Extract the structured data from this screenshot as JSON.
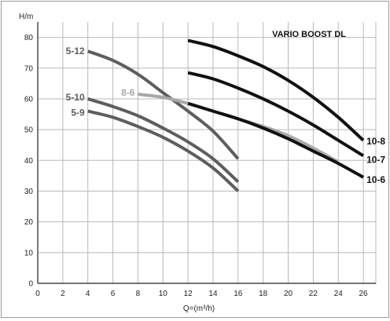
{
  "chart_data": {
    "type": "line",
    "title": "VARIO BOOST DL",
    "xlabel": "Q=(m³/h)",
    "ylabel": "H/m",
    "xlim": [
      0,
      27
    ],
    "ylim": [
      0,
      85
    ],
    "xticks": [
      "0",
      "2",
      "4",
      "6",
      "8",
      "10",
      "12",
      "14",
      "16",
      "18",
      "20",
      "22",
      "24",
      "26"
    ],
    "yticks": [
      "0",
      "10",
      "20",
      "30",
      "40",
      "50",
      "60",
      "70",
      "80"
    ],
    "grid": true,
    "series": [
      {
        "name": "5-12",
        "color": "#5e5e5e",
        "label_side": "left",
        "x": [
          4,
          6,
          8,
          10,
          12,
          14,
          16
        ],
        "y": [
          75.5,
          72.5,
          68,
          62,
          56,
          49.5,
          40.5
        ]
      },
      {
        "name": "5-10",
        "color": "#5e5e5e",
        "label_side": "left",
        "x": [
          4,
          6,
          8,
          10,
          12,
          14,
          16
        ],
        "y": [
          60,
          57.5,
          54.5,
          50.5,
          46,
          40.5,
          33
        ]
      },
      {
        "name": "5-9",
        "color": "#5e5e5e",
        "label_side": "left",
        "x": [
          4,
          6,
          8,
          10,
          12,
          14,
          16
        ],
        "y": [
          56,
          54,
          51,
          47.5,
          43,
          37.5,
          30
        ]
      },
      {
        "name": "8-6",
        "color": "#a8a8a8",
        "label_side": "left",
        "x": [
          8,
          10,
          12,
          14,
          16,
          18,
          20,
          22,
          24
        ],
        "y": [
          61.5,
          60.5,
          58.5,
          56,
          53.5,
          51,
          48,
          44,
          39.5
        ]
      },
      {
        "name": "10-8",
        "color": "#111111",
        "label_side": "right",
        "x": [
          12,
          14,
          16,
          18,
          20,
          22,
          24,
          26
        ],
        "y": [
          79,
          77,
          74,
          70.5,
          66,
          60.5,
          54,
          46.5
        ]
      },
      {
        "name": "10-7",
        "color": "#111111",
        "label_side": "right",
        "x": [
          12,
          14,
          16,
          18,
          20,
          22,
          24,
          26
        ],
        "y": [
          68.5,
          66.5,
          63.5,
          60,
          56,
          51.5,
          46.5,
          41.5
        ]
      },
      {
        "name": "10-6",
        "color": "#111111",
        "label_side": "right",
        "x": [
          12,
          14,
          16,
          18,
          20,
          22,
          24,
          26
        ],
        "y": [
          58.5,
          56,
          53.5,
          50.5,
          47,
          43,
          39,
          34.5
        ]
      }
    ]
  }
}
